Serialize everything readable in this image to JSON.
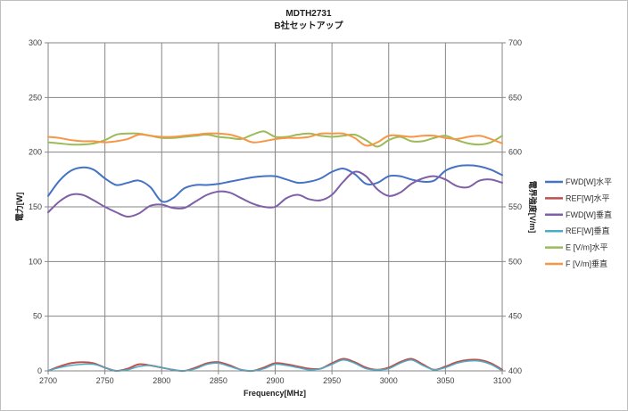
{
  "chart_data": {
    "type": "line",
    "title": "MDTH2731",
    "subtitle": "B社セットアップ",
    "xlabel": "Frequency[MHz]",
    "ylabel": "電力[W]",
    "ylabel_right": "電界強度[V/m]",
    "xlim": [
      2700,
      3100
    ],
    "ylim": [
      0,
      300
    ],
    "ylim_right": [
      400,
      700
    ],
    "grid": true,
    "legend_position": "right",
    "x_ticks": [
      "2700",
      "2750",
      "2800",
      "2850",
      "2900",
      "2950",
      "3000",
      "3050",
      "3100"
    ],
    "y_ticks": [
      "0",
      "50",
      "100",
      "150",
      "200",
      "250",
      "300"
    ],
    "y_ticks_right": [
      "400",
      "450",
      "500",
      "550",
      "600",
      "650",
      "700"
    ],
    "x": [
      2700,
      2710,
      2720,
      2730,
      2740,
      2750,
      2760,
      2770,
      2780,
      2790,
      2800,
      2810,
      2820,
      2830,
      2840,
      2850,
      2860,
      2870,
      2880,
      2890,
      2900,
      2910,
      2920,
      2930,
      2940,
      2950,
      2960,
      2970,
      2980,
      2990,
      3000,
      3010,
      3020,
      3030,
      3040,
      3050,
      3060,
      3070,
      3080,
      3090,
      3100
    ],
    "series": [
      {
        "name": "FWD[W]水平",
        "axis": "left",
        "color": "#4472c4",
        "width": 2,
        "values": [
          160,
          174,
          183,
          186,
          184,
          176,
          170,
          172,
          174,
          168,
          155,
          158,
          167,
          170,
          170,
          171,
          173,
          175,
          177,
          178,
          178,
          175,
          172,
          173,
          176,
          182,
          185,
          180,
          171,
          172,
          178,
          178,
          175,
          173,
          174,
          183,
          187,
          188,
          187,
          184,
          179
        ]
      },
      {
        "name": "REF[W]水平",
        "axis": "left",
        "color": "#c0504d",
        "width": 2,
        "values": [
          0,
          4,
          7,
          8,
          7,
          3,
          0,
          2,
          6,
          5,
          3,
          1,
          0,
          3,
          7,
          8,
          5,
          1,
          0,
          3,
          7,
          6,
          4,
          2,
          2,
          7,
          11,
          8,
          3,
          1,
          3,
          8,
          11,
          6,
          1,
          4,
          8,
          10,
          10,
          7,
          1
        ]
      },
      {
        "name": "FWD[W]垂直",
        "axis": "left",
        "color": "#7f5fa8",
        "width": 2,
        "values": [
          145,
          155,
          161,
          161,
          156,
          150,
          145,
          141,
          144,
          151,
          152,
          149,
          149,
          155,
          161,
          164,
          163,
          158,
          153,
          150,
          150,
          158,
          161,
          157,
          156,
          161,
          173,
          182,
          178,
          166,
          160,
          163,
          171,
          176,
          178,
          175,
          169,
          168,
          174,
          175,
          172
        ]
      },
      {
        "name": "REF[W]垂直",
        "axis": "left",
        "color": "#4bacc6",
        "width": 1.5,
        "values": [
          0,
          3,
          5,
          6,
          6,
          3,
          0,
          1,
          4,
          5,
          3,
          1,
          0,
          2,
          6,
          7,
          4,
          1,
          0,
          2,
          6,
          5,
          3,
          1,
          2,
          6,
          10,
          7,
          2,
          1,
          2,
          7,
          10,
          5,
          1,
          3,
          7,
          9,
          9,
          6,
          0
        ]
      },
      {
        "name": "E [V/m]水平",
        "axis": "right",
        "color": "#9bbb59",
        "width": 2,
        "values": [
          609,
          608,
          607,
          607,
          608,
          611,
          616,
          617,
          617,
          615,
          613,
          613,
          614,
          615,
          616,
          614,
          613,
          612,
          616,
          619,
          614,
          614,
          616,
          617,
          615,
          614,
          615,
          616,
          611,
          605,
          611,
          614,
          610,
          610,
          613,
          615,
          611,
          608,
          607,
          609,
          615
        ]
      },
      {
        "name": "F [V/m]垂直",
        "axis": "right",
        "color": "#f79646",
        "width": 2,
        "values": [
          614,
          613,
          611,
          610,
          610,
          609,
          610,
          612,
          616,
          615,
          614,
          614,
          615,
          616,
          617,
          617,
          616,
          613,
          609,
          610,
          612,
          613,
          613,
          614,
          617,
          617,
          617,
          613,
          606,
          609,
          615,
          615,
          614,
          615,
          615,
          613,
          612,
          614,
          615,
          612,
          608
        ]
      }
    ]
  }
}
